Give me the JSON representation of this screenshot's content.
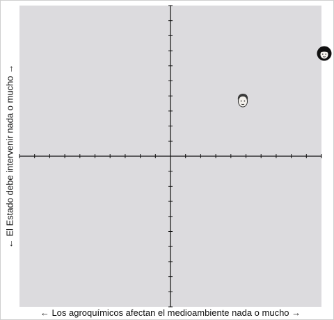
{
  "axes": {
    "x_label": "← Los agroquímicos afectan el medioambiente nada o mucho →",
    "y_label": "← El Estado debe intervenir nada o mucho →"
  },
  "chart_data": {
    "type": "scatter",
    "xlim": [
      -1,
      1
    ],
    "ylim": [
      -1,
      1
    ],
    "ticks_per_half_axis": 10,
    "grid": false,
    "points": [
      {
        "icon": "male-avatar-icon",
        "x": 0.48,
        "y": 0.37
      },
      {
        "icon": "female-avatar-icon",
        "x": 1.02,
        "y": 0.68
      }
    ]
  },
  "colors": {
    "plot_background": "#dcdbde",
    "axis": "#111111"
  }
}
